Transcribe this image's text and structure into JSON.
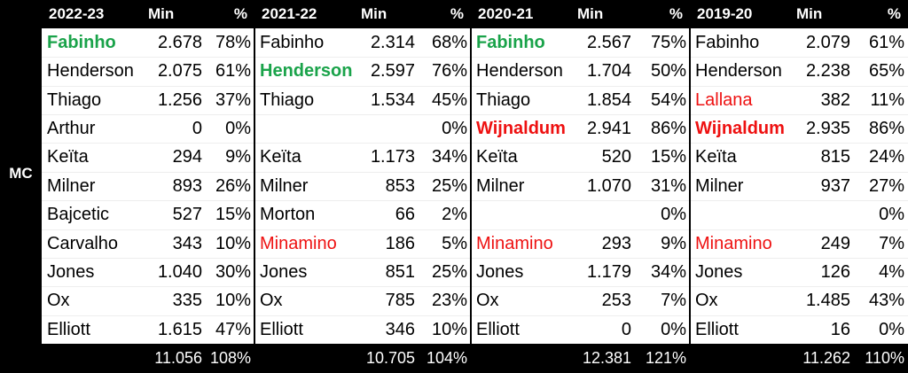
{
  "side_label": "MC",
  "blocks": [
    {
      "season": "2022-23",
      "min_header": "Min",
      "pct_header": "%",
      "total_min": "11.056",
      "total_pct": "108%",
      "rows": [
        {
          "name": "Fabinho",
          "min": "2.678",
          "pct": "78%",
          "highlight": "green"
        },
        {
          "name": "Henderson",
          "min": "2.075",
          "pct": "61%"
        },
        {
          "name": "Thiago",
          "min": "1.256",
          "pct": "37%"
        },
        {
          "name": "Arthur",
          "min": "0",
          "pct": "0%"
        },
        {
          "name": "Keïta",
          "min": "294",
          "pct": "9%"
        },
        {
          "name": "Milner",
          "min": "893",
          "pct": "26%"
        },
        {
          "name": "Bajcetic",
          "min": "527",
          "pct": "15%"
        },
        {
          "name": "Carvalho",
          "min": "343",
          "pct": "10%"
        },
        {
          "name": "Jones",
          "min": "1.040",
          "pct": "30%"
        },
        {
          "name": "Ox",
          "min": "335",
          "pct": "10%"
        },
        {
          "name": "Elliott",
          "min": "1.615",
          "pct": "47%"
        }
      ]
    },
    {
      "season": "2021-22",
      "min_header": "Min",
      "pct_header": "%",
      "total_min": "10.705",
      "total_pct": "104%",
      "rows": [
        {
          "name": "Fabinho",
          "min": "2.314",
          "pct": "68%"
        },
        {
          "name": "Henderson",
          "min": "2.597",
          "pct": "76%",
          "highlight": "green"
        },
        {
          "name": "Thiago",
          "min": "1.534",
          "pct": "45%"
        },
        {
          "name": null,
          "min": null,
          "pct": "0%"
        },
        {
          "name": "Keïta",
          "min": "1.173",
          "pct": "34%"
        },
        {
          "name": "Milner",
          "min": "853",
          "pct": "25%"
        },
        {
          "name": "Morton",
          "min": "66",
          "pct": "2%"
        },
        {
          "name": "Minamino",
          "min": "186",
          "pct": "5%",
          "highlight": "red"
        },
        {
          "name": "Jones",
          "min": "851",
          "pct": "25%"
        },
        {
          "name": "Ox",
          "min": "785",
          "pct": "23%"
        },
        {
          "name": "Elliott",
          "min": "346",
          "pct": "10%"
        }
      ]
    },
    {
      "season": "2020-21",
      "min_header": "Min",
      "pct_header": "%",
      "total_min": "12.381",
      "total_pct": "121%",
      "rows": [
        {
          "name": "Fabinho",
          "min": "2.567",
          "pct": "75%",
          "highlight": "green"
        },
        {
          "name": "Henderson",
          "min": "1.704",
          "pct": "50%"
        },
        {
          "name": "Thiago",
          "min": "1.854",
          "pct": "54%"
        },
        {
          "name": "Wijnaldum",
          "min": "2.941",
          "pct": "86%",
          "highlight": "red-bold"
        },
        {
          "name": "Keïta",
          "min": "520",
          "pct": "15%"
        },
        {
          "name": "Milner",
          "min": "1.070",
          "pct": "31%"
        },
        {
          "name": null,
          "min": null,
          "pct": "0%"
        },
        {
          "name": "Minamino",
          "min": "293",
          "pct": "9%",
          "highlight": "red"
        },
        {
          "name": "Jones",
          "min": "1.179",
          "pct": "34%"
        },
        {
          "name": "Ox",
          "min": "253",
          "pct": "7%"
        },
        {
          "name": "Elliott",
          "min": "0",
          "pct": "0%"
        }
      ]
    },
    {
      "season": "2019-20",
      "min_header": "Min",
      "pct_header": "%",
      "total_min": "11.262",
      "total_pct": "110%",
      "rows": [
        {
          "name": "Fabinho",
          "min": "2.079",
          "pct": "61%"
        },
        {
          "name": "Henderson",
          "min": "2.238",
          "pct": "65%"
        },
        {
          "name": "Lallana",
          "min": "382",
          "pct": "11%",
          "highlight": "red"
        },
        {
          "name": "Wijnaldum",
          "min": "2.935",
          "pct": "86%",
          "highlight": "red-bold"
        },
        {
          "name": "Keïta",
          "min": "815",
          "pct": "24%"
        },
        {
          "name": "Milner",
          "min": "937",
          "pct": "27%"
        },
        {
          "name": null,
          "min": null,
          "pct": "0%"
        },
        {
          "name": "Minamino",
          "min": "249",
          "pct": "7%",
          "highlight": "red"
        },
        {
          "name": "Jones",
          "min": "126",
          "pct": "4%"
        },
        {
          "name": "Ox",
          "min": "1.485",
          "pct": "43%"
        },
        {
          "name": "Elliott",
          "min": "16",
          "pct": "0%"
        }
      ]
    }
  ]
}
